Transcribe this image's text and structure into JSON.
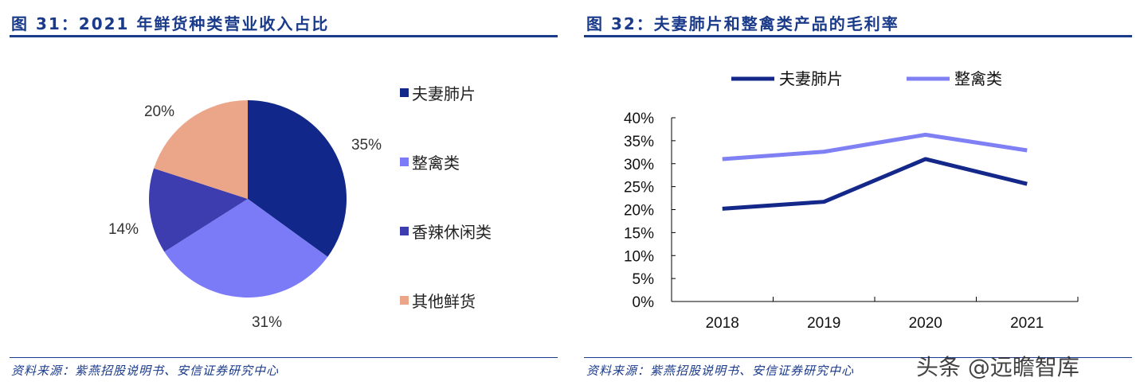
{
  "left": {
    "title": "图 31：2021 年鲜货种类营业收入占比",
    "source": "资料来源：紫燕招股说明书、安信证券研究中心"
  },
  "right": {
    "title": "图 32：夫妻肺片和整禽类产品的毛利率",
    "source": "资料来源：紫燕招股说明书、安信证券研究中心"
  },
  "watermark": "头条 @远瞻智库",
  "chart_data": [
    {
      "type": "pie",
      "categories": [
        "夫妻肺片",
        "整禽类",
        "香辣休闲类",
        "其他鲜货"
      ],
      "values": [
        35,
        31,
        14,
        20
      ],
      "labels": [
        "35%",
        "31%",
        "14%",
        "20%"
      ],
      "colors": [
        "#11288a",
        "#7b7bf7",
        "#3d3daf",
        "#eba68a"
      ],
      "legend": "right"
    },
    {
      "type": "line",
      "categories": [
        "2018",
        "2019",
        "2020",
        "2021"
      ],
      "series": [
        {
          "name": "夫妻肺片",
          "values": [
            20.2,
            21.7,
            31.0,
            25.6
          ],
          "color": "#14288a"
        },
        {
          "name": "整禽类",
          "values": [
            31.0,
            32.6,
            36.3,
            32.9
          ],
          "color": "#8080f5"
        }
      ],
      "ylim": [
        0,
        40
      ],
      "yticks": [
        "0%",
        "5%",
        "10%",
        "15%",
        "20%",
        "25%",
        "30%",
        "35%",
        "40%"
      ],
      "grid": false,
      "legend": "top"
    }
  ]
}
